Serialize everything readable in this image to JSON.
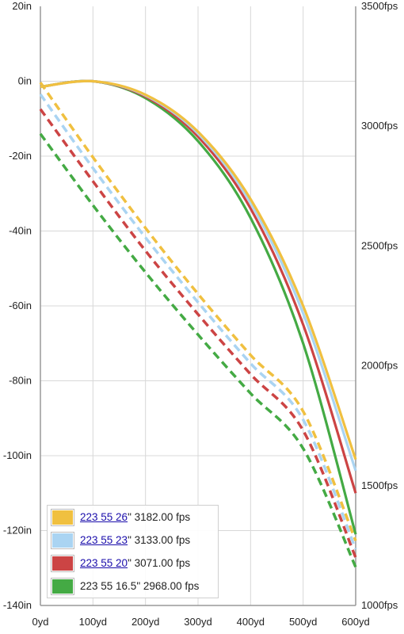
{
  "chart_data": {
    "type": "line",
    "title": "",
    "xlabel": "",
    "ylabel": "",
    "x_unit": "yd",
    "y_left_unit": "in",
    "y_right_unit": "fps",
    "xlim": [
      0,
      600
    ],
    "ylim_left": [
      -140,
      20
    ],
    "ylim_right": [
      1000,
      3500
    ],
    "grid": true,
    "legend_position": "bottom-left",
    "x_ticks": [
      0,
      100,
      200,
      300,
      400,
      500,
      600
    ],
    "y_left_ticks": [
      20,
      0,
      -20,
      -40,
      -60,
      -80,
      -100,
      -120,
      -140
    ],
    "y_right_ticks": [
      3500,
      3000,
      2500,
      2000,
      1500,
      1000
    ],
    "x_tick_labels": [
      "0yd",
      "100yd",
      "200yd",
      "300yd",
      "400yd",
      "500yd",
      "600yd"
    ],
    "y_left_tick_labels": [
      "20in",
      "0in",
      "-20in",
      "-40in",
      "-60in",
      "-80in",
      "-100in",
      "-120in",
      "-140in"
    ],
    "y_right_tick_labels": [
      "3500fps",
      "3000fps",
      "2500fps",
      "2000fps",
      "1500fps",
      "1000fps"
    ],
    "series": [
      {
        "color": "#f0c040",
        "legend_link": "223 55 26",
        "legend_rest": "\" 3182.00 fps",
        "trajectory": {
          "x": [
            0,
            100,
            200,
            300,
            400,
            500,
            600
          ],
          "y": [
            -1.5,
            0,
            -3.6,
            -13.5,
            -31.5,
            -60,
            -101
          ]
        },
        "velocity": {
          "x": [
            0,
            100,
            200,
            300,
            400,
            500,
            600
          ],
          "y": [
            3182,
            2870,
            2575,
            2300,
            2045,
            1810,
            1270
          ]
        }
      },
      {
        "color": "#aad4f2",
        "legend_link": "223 55 23",
        "legend_rest": "\" 3133.00 fps",
        "trajectory": {
          "x": [
            0,
            100,
            200,
            300,
            400,
            500,
            600
          ],
          "y": [
            -1.5,
            0,
            -3.8,
            -14,
            -32.5,
            -62,
            -104
          ]
        },
        "velocity": {
          "x": [
            0,
            100,
            200,
            300,
            400,
            500,
            600
          ],
          "y": [
            3133,
            2825,
            2535,
            2265,
            2010,
            1775,
            1235
          ]
        }
      },
      {
        "color": "#cc4444",
        "legend_link": "223 55 20",
        "legend_rest": "\" 3071.00 fps",
        "trajectory": {
          "x": [
            0,
            100,
            200,
            300,
            400,
            500,
            600
          ],
          "y": [
            -1.5,
            0,
            -4.1,
            -14.8,
            -34,
            -65,
            -110
          ]
        },
        "velocity": {
          "x": [
            0,
            100,
            200,
            300,
            400,
            500,
            600
          ],
          "y": [
            3071,
            2770,
            2480,
            2215,
            1965,
            1730,
            1200
          ]
        }
      },
      {
        "color": "#44aa44",
        "legend_link": "",
        "legend_rest": "223 55 16.5\" 2968.00 fps",
        "trajectory": {
          "x": [
            0,
            100,
            200,
            300,
            400,
            500,
            600
          ],
          "y": [
            -1.5,
            0,
            -4.5,
            -16,
            -36.5,
            -70,
            -121
          ]
        },
        "velocity": {
          "x": [
            0,
            100,
            200,
            300,
            400,
            500,
            600
          ],
          "y": [
            2968,
            2670,
            2390,
            2130,
            1885,
            1655,
            1160
          ]
        }
      }
    ]
  }
}
